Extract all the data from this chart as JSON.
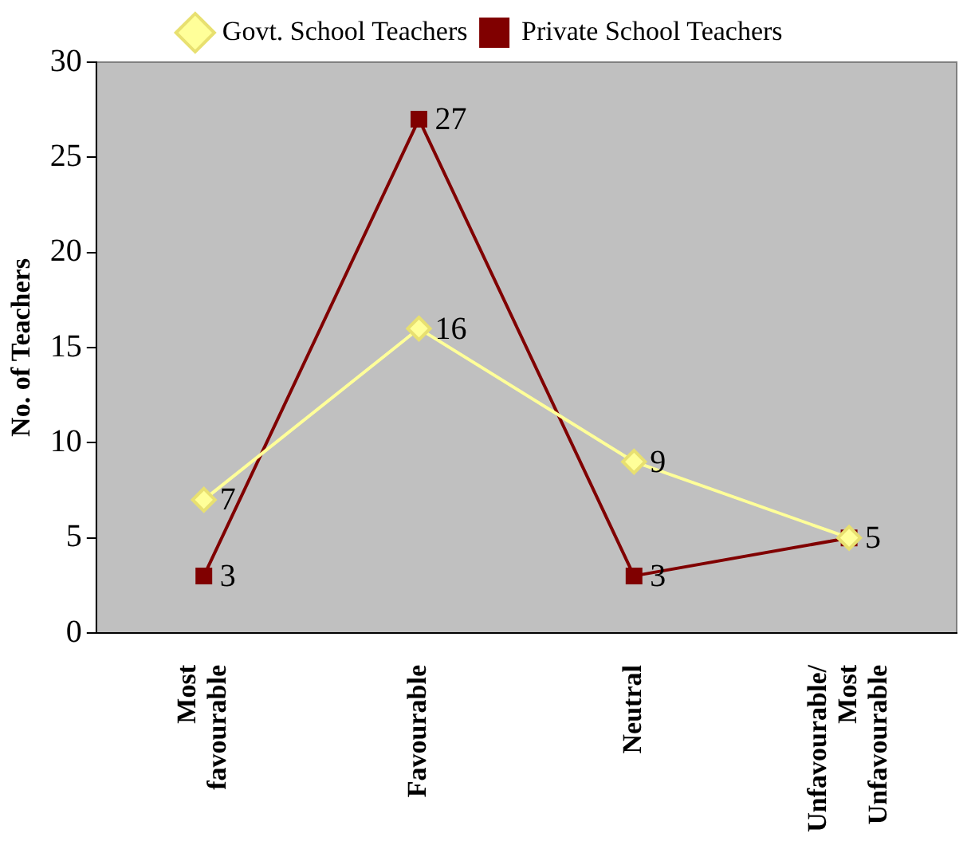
{
  "chart_data": {
    "type": "line",
    "ylabel": "No. of Teachers",
    "categories": [
      "Most favourable",
      "Favourable",
      "Neutral",
      "Unfavourable/ Most Unfavourable"
    ],
    "series": [
      {
        "name": "Govt. School Teachers",
        "color": "#ffff99",
        "marker": "diamond",
        "values": [
          7,
          16,
          9,
          5
        ],
        "value_labels": [
          "7",
          "16",
          "9",
          null
        ]
      },
      {
        "name": "Private School Teachers",
        "color": "#800000",
        "marker": "square",
        "values": [
          3,
          27,
          3,
          5
        ],
        "value_labels": [
          "3",
          "27",
          "3",
          "5"
        ]
      }
    ],
    "ylim": [
      0,
      30
    ],
    "yticks": [
      0,
      5,
      10,
      15,
      20,
      25,
      30
    ],
    "grid": false,
    "legend": "top",
    "line_style": "solid"
  }
}
